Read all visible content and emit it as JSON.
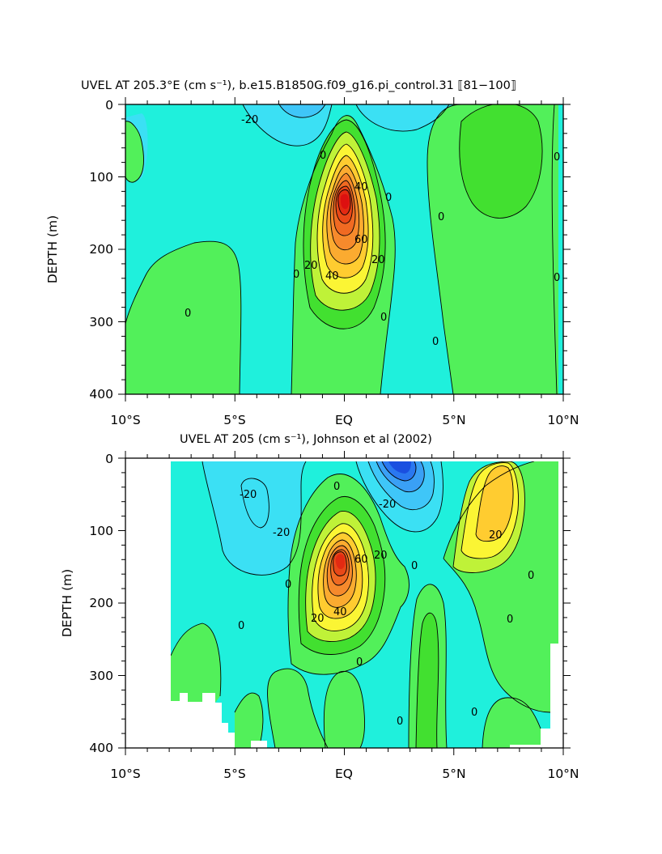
{
  "chart_data": [
    {
      "type": "heatmap",
      "subtype": "filled-contour",
      "title": "UVEL AT 205.3°E (cm s⁻¹), b.e15.B1850G.f09_g16.pi_control.31 ⟦81−100⟧",
      "xlabel": "",
      "ylabel": "DEPTH (m)",
      "x_ticks": [
        "10°S",
        "5°S",
        "EQ",
        "5°N",
        "10°N"
      ],
      "y_ticks": [
        "0",
        "100",
        "200",
        "300",
        "400"
      ],
      "xlim": [
        -10,
        10
      ],
      "ylim": [
        400,
        0
      ],
      "contour_labels": [
        "-20",
        "0",
        "0",
        "0",
        "0",
        "0",
        "0",
        "0",
        "0",
        "20",
        "20",
        "40",
        "40",
        "60"
      ],
      "features": [
        {
          "kind": "core",
          "lat": 0.0,
          "depth": 150,
          "max_value": 100
        },
        {
          "kind": "westward",
          "lat": -1.8,
          "depth": 15,
          "value": -30
        },
        {
          "kind": "eastward",
          "lat": 6.5,
          "depth": 100,
          "value": 10
        }
      ]
    },
    {
      "type": "heatmap",
      "subtype": "filled-contour",
      "title": "UVEL AT 205 (cm s⁻¹), Johnson et al (2002)",
      "xlabel": "",
      "ylabel": "DEPTH (m)",
      "x_ticks": [
        "10°S",
        "5°S",
        "EQ",
        "5°N",
        "10°N"
      ],
      "y_ticks": [
        "0",
        "100",
        "200",
        "300",
        "400"
      ],
      "xlim": [
        -10,
        10
      ],
      "ylim": [
        400,
        0
      ],
      "contour_labels": [
        "-20",
        "-20",
        "-20",
        "0",
        "0",
        "0",
        "0",
        "0",
        "0",
        "0",
        "0",
        "0",
        "20",
        "20",
        "20",
        "40",
        "60"
      ],
      "features": [
        {
          "kind": "core",
          "lat": 0.0,
          "depth": 130,
          "max_value": 100
        },
        {
          "kind": "westward",
          "lat": 1.8,
          "depth": 15,
          "value": -60
        },
        {
          "kind": "eastward",
          "lat": 6.8,
          "depth": 60,
          "value": 35
        }
      ]
    }
  ],
  "colors": {
    "c_m60": "#1a4fe0",
    "c_m50": "#2a78f0",
    "c_m40": "#3aa0f5",
    "c_m30": "#3fc6f8",
    "c_m20": "#3be0f4",
    "c_m10": "#1ff0dc",
    "c_0": "#52f05a",
    "c_10": "#42e030",
    "c_20": "#bff238",
    "c_30": "#fbf534",
    "c_40": "#ffcc30",
    "c_50": "#fbab30",
    "c_60": "#f68a2c",
    "c_70": "#f06a22",
    "c_80": "#e94818",
    "c_90": "#e32a12",
    "c_100": "#dd1010"
  }
}
